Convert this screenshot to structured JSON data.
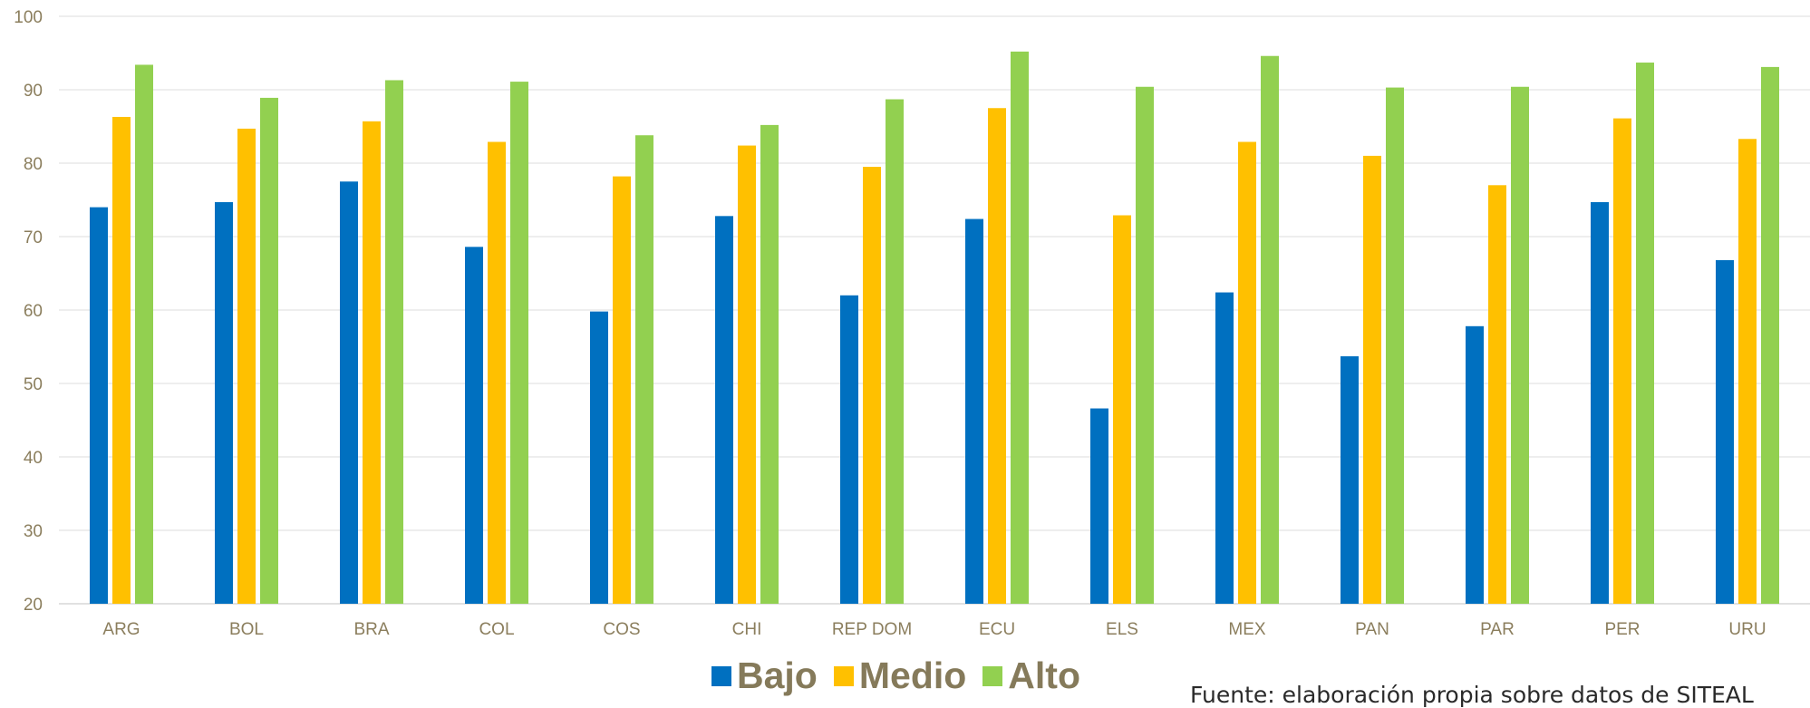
{
  "chart_data": {
    "type": "bar",
    "categories": [
      "ARG",
      "BOL",
      "BRA",
      "COL",
      "COS",
      "CHI",
      "REP DOM",
      "ECU",
      "ELS",
      "MEX",
      "PAN",
      "PAR",
      "PER",
      "URU"
    ],
    "series": [
      {
        "name": "Bajo",
        "color": "#0070c0",
        "values": [
          74.0,
          74.7,
          77.5,
          68.6,
          59.8,
          72.8,
          62.0,
          72.4,
          46.6,
          62.4,
          53.7,
          57.8,
          74.7,
          66.8
        ]
      },
      {
        "name": "Medio",
        "color": "#ffc000",
        "values": [
          86.3,
          84.7,
          85.7,
          82.9,
          78.2,
          82.4,
          79.5,
          87.5,
          72.9,
          82.9,
          81.0,
          77.0,
          86.1,
          83.3
        ]
      },
      {
        "name": "Alto",
        "color": "#92d050",
        "values": [
          93.4,
          88.9,
          91.3,
          91.1,
          83.8,
          85.2,
          88.7,
          95.2,
          90.4,
          94.6,
          90.3,
          90.4,
          93.7,
          93.1
        ]
      }
    ],
    "ylim": [
      20,
      100
    ],
    "yticks": [
      20,
      30,
      40,
      50,
      60,
      70,
      80,
      90,
      100
    ],
    "grid": true,
    "legend_position": "bottom-center"
  },
  "source_note": "Fuente: elaboración propia sobre datos de SITEAL"
}
